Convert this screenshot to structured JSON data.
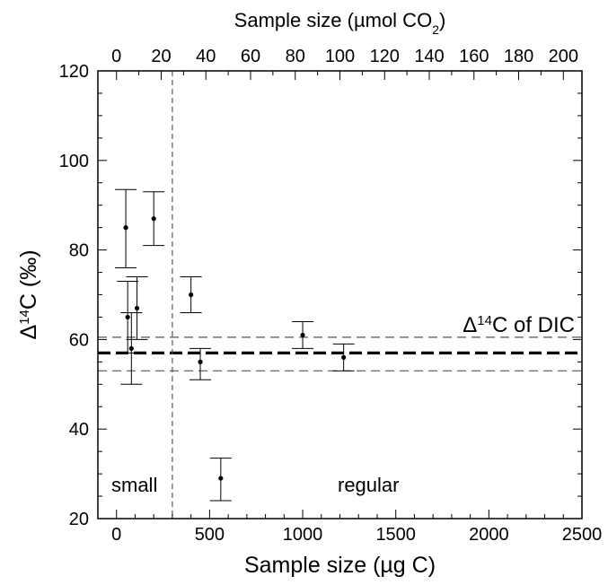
{
  "chart_data": {
    "type": "scatter",
    "xlabel_prefix": "Sample size (",
    "xlabel_unit": "µg C",
    "xlabel_suffix": ")",
    "x2label_prefix": "Sample size (µmol CO",
    "x2label_sub": "2",
    "x2label_suffix": ")",
    "ylabel_prefix": "Δ",
    "ylabel_sup": "14",
    "ylabel_suffix": "C (‰)",
    "xlim": [
      -100,
      2500
    ],
    "ylim": [
      20,
      120
    ],
    "x2lim": [
      -8.33,
      208.33
    ],
    "xticks": [
      0,
      500,
      1000,
      1500,
      2000,
      2500
    ],
    "xtick_labels": [
      "0",
      "500",
      "1000",
      "1500",
      "2000",
      "2500"
    ],
    "x2ticks": [
      0,
      20,
      40,
      60,
      80,
      100,
      120,
      140,
      160,
      180,
      200
    ],
    "x2tick_labels": [
      "0",
      "20",
      "40",
      "60",
      "80",
      "100",
      "120",
      "140",
      "160",
      "180",
      "200"
    ],
    "yticks": [
      20,
      40,
      60,
      80,
      100,
      120
    ],
    "ytick_labels": [
      "20",
      "40",
      "60",
      "80",
      "100",
      "120"
    ],
    "y_minor_step": 5,
    "x_minor_step": 100,
    "x2_minor_step": 10,
    "grid": false,
    "points": [
      {
        "x": 50,
        "y": 85,
        "err_low": 76,
        "err_high": 93.5
      },
      {
        "x": 60,
        "y": 65,
        "err_low": 57,
        "err_high": 73
      },
      {
        "x": 80,
        "y": 58,
        "err_low": 50,
        "err_high": 66
      },
      {
        "x": 110,
        "y": 67,
        "err_low": 60,
        "err_high": 74
      },
      {
        "x": 200,
        "y": 87,
        "err_low": 81,
        "err_high": 93
      },
      {
        "x": 400,
        "y": 70,
        "err_low": 66,
        "err_high": 74
      },
      {
        "x": 450,
        "y": 55,
        "err_low": 51,
        "err_high": 58
      },
      {
        "x": 560,
        "y": 29,
        "err_low": 24,
        "err_high": 33.5
      },
      {
        "x": 1000,
        "y": 61,
        "err_low": 58,
        "err_high": 64
      },
      {
        "x": 1220,
        "y": 56,
        "err_low": 53,
        "err_high": 59
      }
    ],
    "dic_mean": 57,
    "dic_low": 53,
    "dic_high": 60.5,
    "size_threshold": 300,
    "dic_label_prefix": "Δ",
    "dic_label_sup": "14",
    "dic_label_suffix": "C of DIC",
    "annotations": {
      "small": "small",
      "regular": "regular"
    }
  }
}
